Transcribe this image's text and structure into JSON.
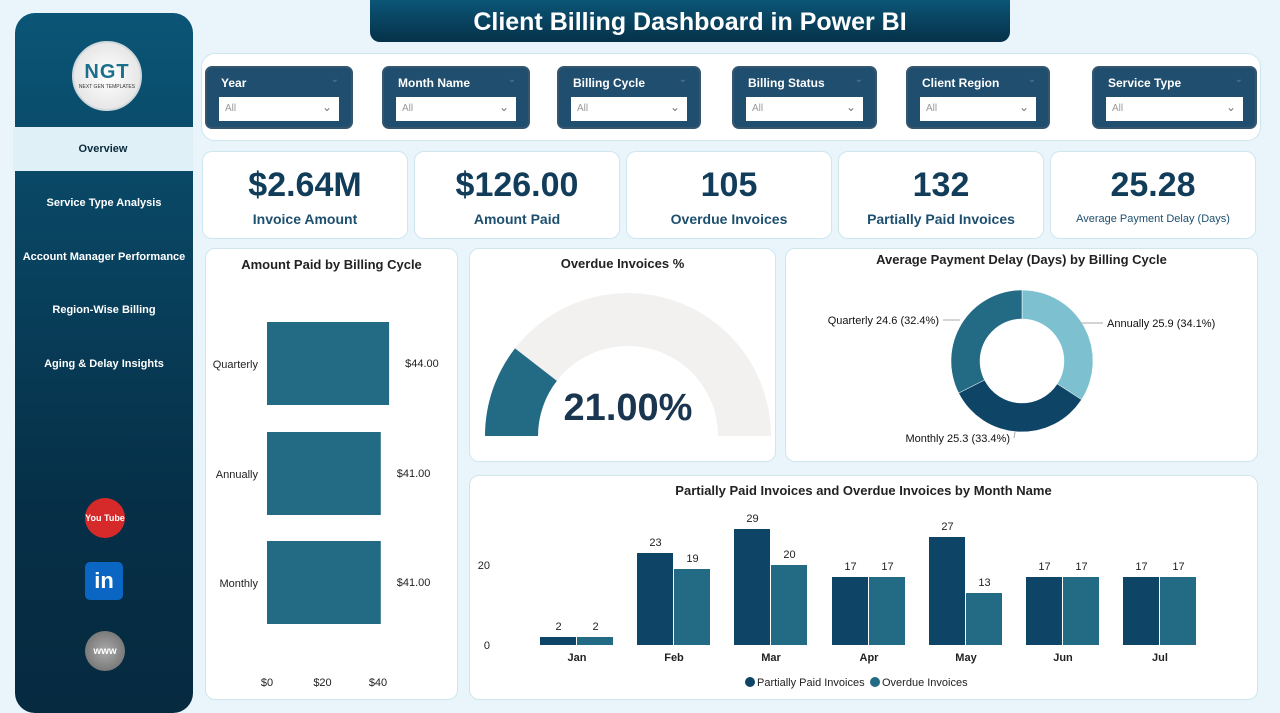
{
  "title": "Client Billing Dashboard in Power BI",
  "logo": {
    "text": "NGT",
    "subtitle": "NEXT GEN TEMPLATES"
  },
  "sidebar": {
    "items": [
      {
        "label": "Overview",
        "active": true
      },
      {
        "label": "Service Type Analysis"
      },
      {
        "label": "Account Manager Performance"
      },
      {
        "label": "Region-Wise Billing"
      },
      {
        "label": "Aging & Delay Insights"
      }
    ],
    "social": [
      {
        "icon": "youtube-icon",
        "label": "You Tube",
        "color": "#d62a2a"
      },
      {
        "icon": "linkedin-icon",
        "label": "in",
        "color": "#0a66c2"
      },
      {
        "icon": "globe-www-icon",
        "label": "www",
        "color": "#8a8a8a"
      }
    ]
  },
  "filters": [
    {
      "label": "Year",
      "value": "All"
    },
    {
      "label": "Month Name",
      "value": "All"
    },
    {
      "label": "Billing Cycle",
      "value": "All"
    },
    {
      "label": "Billing Status",
      "value": "All"
    },
    {
      "label": "Client Region",
      "value": "All"
    },
    {
      "label": "Service Type",
      "value": "All"
    }
  ],
  "kpis": [
    {
      "value": "$2.64M",
      "label": "Invoice Amount"
    },
    {
      "value": "$126.00",
      "label": "Amount Paid"
    },
    {
      "value": "105",
      "label": "Overdue Invoices"
    },
    {
      "value": "132",
      "label": "Partially Paid Invoices"
    },
    {
      "value": "25.28",
      "label": "Average Payment Delay (Days)"
    }
  ],
  "chart_data": [
    {
      "type": "bar",
      "orientation": "horizontal",
      "title": "Amount Paid by Billing Cycle",
      "categories": [
        "Quarterly",
        "Annually",
        "Monthly"
      ],
      "values": [
        44,
        41,
        41
      ],
      "data_labels": [
        "$44.00",
        "$41.00",
        "$41.00"
      ],
      "xticks": [
        "$0",
        "$20",
        "$40"
      ],
      "xlim": [
        0,
        45
      ],
      "color": "#236a85"
    },
    {
      "type": "gauge",
      "title": "Overdue Invoices %",
      "value": 21,
      "label": "21.00%",
      "range": [
        0,
        100
      ],
      "colors": {
        "fill": "#236a85",
        "track": "#f2f1f0"
      }
    },
    {
      "type": "pie",
      "donut": true,
      "title": "Average Payment Delay (Days) by Billing Cycle",
      "slices": [
        {
          "name": "Annually",
          "value": 25.9,
          "label": "Annually 25.9 (34.1%)",
          "color": "#7dc1d0"
        },
        {
          "name": "Monthly",
          "value": 25.3,
          "label": "Monthly 25.3 (33.4%)",
          "color": "#0e4566"
        },
        {
          "name": "Quarterly",
          "value": 24.6,
          "label": "Quarterly 24.6 (32.4%)",
          "color": "#236a85"
        }
      ]
    },
    {
      "type": "bar",
      "title": "Partially Paid Invoices and Overdue Invoices by Month Name",
      "categories": [
        "Jan",
        "Feb",
        "Mar",
        "Apr",
        "May",
        "Jun",
        "Jul"
      ],
      "series": [
        {
          "name": "Partially Paid Invoices",
          "values": [
            2,
            23,
            29,
            17,
            27,
            17,
            17
          ],
          "color": "#0e4566"
        },
        {
          "name": "Overdue Invoices",
          "values": [
            2,
            19,
            20,
            17,
            13,
            17,
            17
          ],
          "color": "#236a85"
        }
      ],
      "yticks": [
        "0",
        "20"
      ],
      "ylim": [
        0,
        30
      ],
      "legend": "bottom"
    }
  ]
}
